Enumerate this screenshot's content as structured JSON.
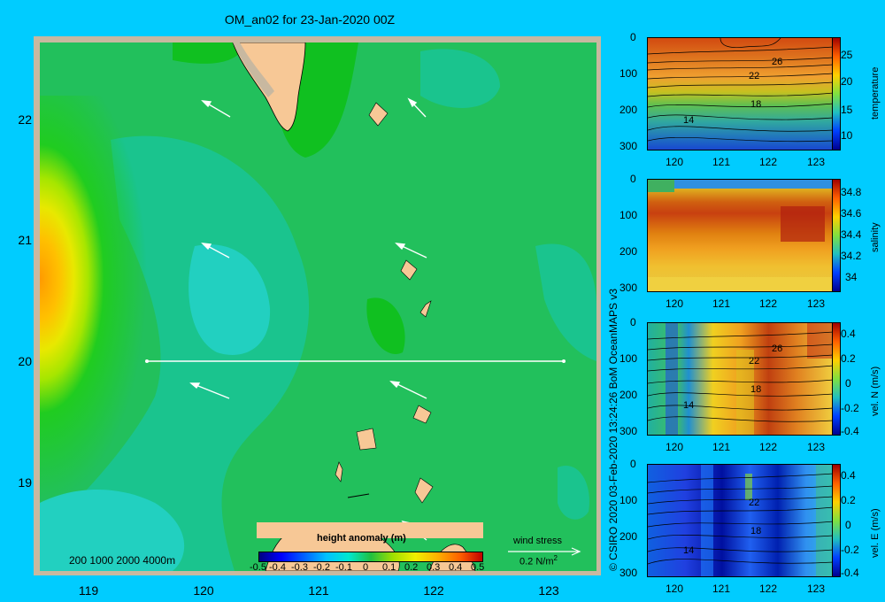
{
  "map": {
    "title": "OM_an02 for 23-Jan-2020 00Z",
    "x_ticks": [
      "119",
      "120",
      "121",
      "122",
      "123"
    ],
    "y_ticks": [
      "22",
      "21",
      "20",
      "19"
    ],
    "scalebar_label": "200  1000  2000  4000m",
    "colorbar_title": "height anomaly  (m)",
    "colorbar_ticks": [
      "-0.5",
      "-0.4",
      "-0.3",
      "-0.2",
      "-0.1",
      "0",
      "0.1",
      "0.2",
      "0.3",
      "0.4",
      "0.5"
    ],
    "wind_stress_label": "wind stress",
    "wind_stress_scale": "0.2 N/m",
    "wind_stress_exp": "2",
    "section_line": {
      "lon_start": 119.5,
      "lon_end": 123.2,
      "lat": 20.0
    },
    "colors": {
      "background": "#00ccff",
      "land": "#f7c896",
      "frame": "#c8b8a0"
    }
  },
  "credit": "© CSIRO 2020  03-Feb-2020 13:24:26 BoM OceanMAPS v3",
  "panels": [
    {
      "label": "temperature",
      "y_ticks": [
        "0",
        "100",
        "200",
        "300"
      ],
      "x_ticks": [
        "120",
        "121",
        "122",
        "123"
      ],
      "cb_ticks": [
        "25",
        "20",
        "15",
        "10"
      ],
      "contour_labels": [
        "26",
        "22",
        "18",
        "14"
      ]
    },
    {
      "label": "salinity",
      "y_ticks": [
        "0",
        "100",
        "200",
        "300"
      ],
      "x_ticks": [
        "120",
        "121",
        "122",
        "123"
      ],
      "cb_ticks": [
        "34.8",
        "34.6",
        "34.4",
        "34.2",
        "34"
      ],
      "contour_labels": []
    },
    {
      "label": "vel. N  (m/s)",
      "y_ticks": [
        "0",
        "100",
        "200",
        "300"
      ],
      "x_ticks": [
        "120",
        "121",
        "122",
        "123"
      ],
      "cb_ticks": [
        "0.4",
        "0.2",
        "0",
        "-0.2",
        "-0.4"
      ],
      "contour_labels": [
        "26",
        "22",
        "18",
        "14"
      ]
    },
    {
      "label": "vel. E  (m/s)",
      "y_ticks": [
        "0",
        "100",
        "200",
        "300"
      ],
      "x_ticks": [
        "120",
        "121",
        "122",
        "123"
      ],
      "cb_ticks": [
        "0.4",
        "0.2",
        "0",
        "-0.2",
        "-0.4"
      ],
      "contour_labels": [
        "22",
        "18",
        "14"
      ]
    }
  ]
}
